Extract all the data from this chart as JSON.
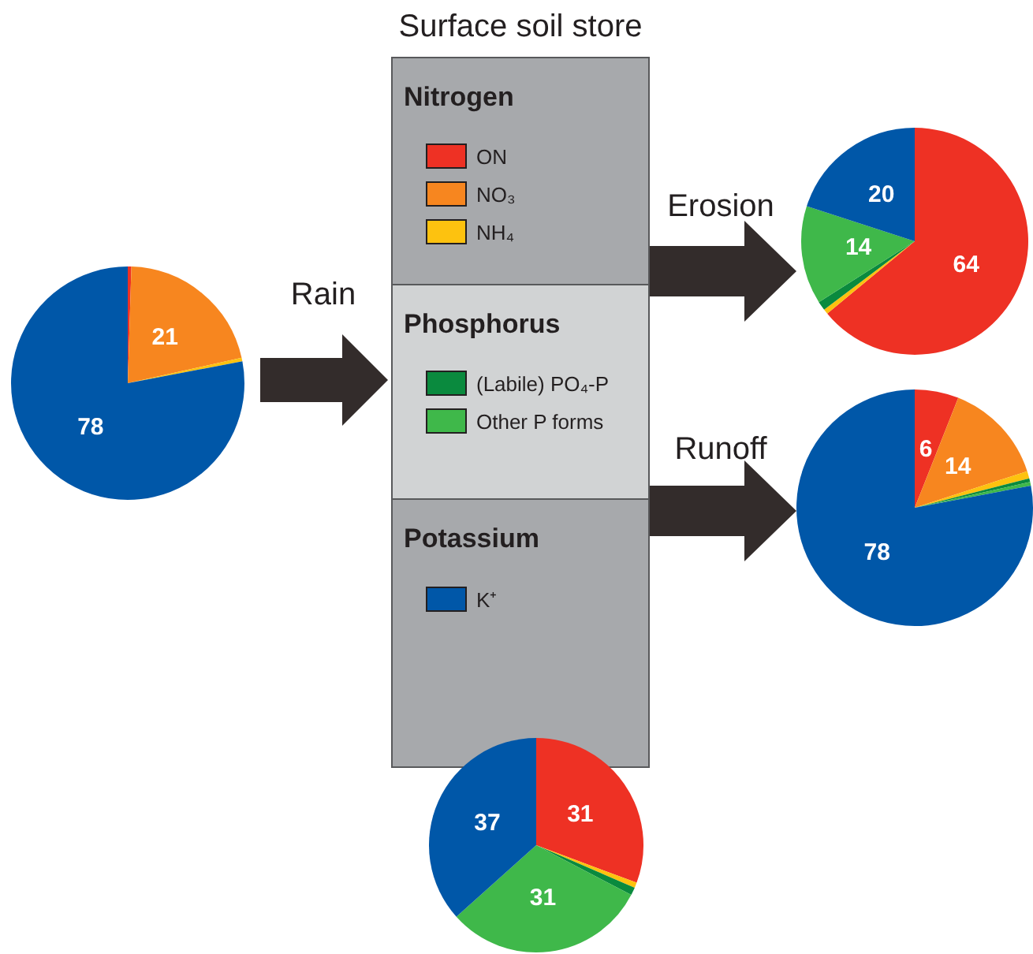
{
  "chart_data": [
    {
      "type": "pie",
      "title": "Rain",
      "categories": [
        null,
        null,
        null,
        null,
        null,
        null
      ],
      "values": [
        0.5,
        21,
        0.5,
        0,
        0,
        78
      ],
      "value_labels": [
        null,
        "21",
        null,
        null,
        null,
        "78"
      ],
      "colors": [
        "#ee3124",
        "#f7861f",
        "#fdc20f",
        "#0a8a3e",
        "#3fb84a",
        "#0057a8"
      ]
    },
    {
      "type": "pie",
      "title": "Erosion",
      "categories": [
        null,
        null,
        null,
        null,
        null,
        null
      ],
      "values": [
        64,
        0,
        0.7,
        1.3,
        14,
        20
      ],
      "value_labels": [
        "64",
        null,
        null,
        null,
        "14",
        "20"
      ],
      "colors": [
        "#ee3124",
        "#f7861f",
        "#fdc20f",
        "#0a8a3e",
        "#3fb84a",
        "#0057a8"
      ]
    },
    {
      "type": "pie",
      "title": "Runoff",
      "categories": [
        null,
        null,
        null,
        null,
        null,
        null
      ],
      "values": [
        6,
        14,
        1,
        0.5,
        0.5,
        78
      ],
      "value_labels": [
        "6",
        "14",
        null,
        null,
        null,
        "78"
      ],
      "colors": [
        "#ee3124",
        "#f7861f",
        "#fdc20f",
        "#0a8a3e",
        "#3fb84a",
        "#0057a8"
      ]
    },
    {
      "type": "pie",
      "title": "Surface soil store",
      "categories": [
        "ON",
        "NO₃",
        "NH₄",
        "(Labile) PO₄-P",
        "Other P forms",
        "K⁺"
      ],
      "values": [
        31,
        0,
        0.8,
        1.2,
        31,
        37
      ],
      "value_labels": [
        "31",
        null,
        null,
        null,
        "31",
        "37"
      ],
      "colors": [
        "#ee3124",
        "#f7861f",
        "#fdc20f",
        "#0a8a3e",
        "#3fb84a",
        "#0057a8"
      ],
      "legend": "top",
      "annotations": [
        "Nitrogen",
        "Phosphorus",
        "Potassium"
      ]
    }
  ]
}
